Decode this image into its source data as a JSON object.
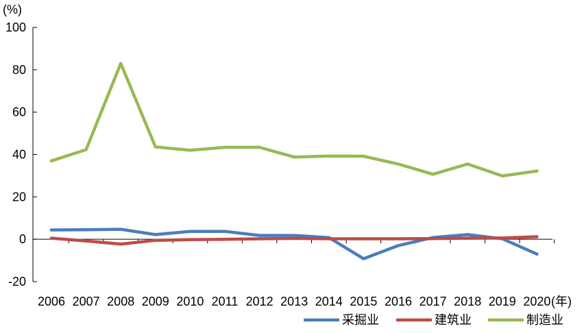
{
  "chart_data": {
    "type": "line",
    "ylabel": "(%)",
    "xunit": "(年)",
    "ylim": [
      -20,
      100
    ],
    "yticks": [
      100,
      80,
      60,
      40,
      20,
      0,
      -20
    ],
    "categories": [
      "2006",
      "2007",
      "2008",
      "2009",
      "2010",
      "2011",
      "2012",
      "2013",
      "2014",
      "2015",
      "2016",
      "2017",
      "2018",
      "2019",
      "2020"
    ],
    "series": [
      {
        "name": "采掘业",
        "color": "#4A7EBB",
        "values": [
          4.4,
          4.5,
          4.7,
          2.2,
          3.7,
          3.7,
          1.8,
          1.8,
          0.8,
          -9.2,
          -3.0,
          0.8,
          2.2,
          0.2,
          -7.0
        ]
      },
      {
        "name": "建筑业",
        "color": "#BE4B48",
        "values": [
          0.5,
          -0.8,
          -2.3,
          -0.5,
          -0.2,
          0.0,
          0.2,
          0.4,
          0.2,
          0.2,
          0.2,
          0.3,
          0.5,
          0.6,
          1.2
        ]
      },
      {
        "name": "制造业",
        "color": "#98B954",
        "values": [
          37.0,
          42.3,
          83.0,
          43.6,
          42.0,
          43.4,
          43.4,
          38.8,
          39.3,
          39.2,
          35.5,
          30.7,
          35.5,
          29.9,
          32.2
        ]
      }
    ],
    "legend_position": "bottom-right",
    "grid": false
  }
}
